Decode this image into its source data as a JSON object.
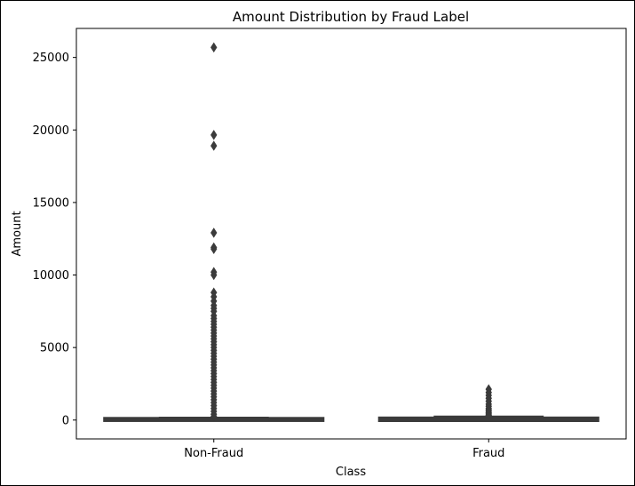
{
  "chart_data": {
    "type": "box",
    "title": "Amount Distribution by Fraud Label",
    "xlabel": "Class",
    "ylabel": "Amount",
    "ylim": [
      -1300,
      27000
    ],
    "yticks": [
      0,
      5000,
      10000,
      15000,
      20000,
      25000
    ],
    "categories": [
      "Non-Fraud",
      "Fraud"
    ],
    "grid": false,
    "box_color": "#3b3b3b",
    "series": [
      {
        "category": "Non-Fraud",
        "box": {
          "min": 0,
          "q1": 5,
          "median": 22,
          "q3": 77,
          "max": 185
        },
        "outliers": [
          25691,
          19656,
          18910,
          12910,
          11898,
          11790,
          10199,
          10000,
          8790,
          8500,
          8200,
          7900,
          7700,
          7500,
          7200,
          7000,
          6800,
          6600,
          6400,
          6200,
          6000,
          5800,
          5600,
          5400,
          5200,
          5000,
          4800,
          4600,
          4400,
          4200,
          4000,
          3800,
          3600,
          3400,
          3200,
          3000,
          2800,
          2600,
          2400,
          2200,
          2000,
          1800,
          1600,
          1400,
          1200,
          1000,
          800,
          600,
          400,
          250
        ]
      },
      {
        "category": "Fraud",
        "box": {
          "min": 0,
          "q1": 1,
          "median": 9,
          "q3": 105,
          "max": 260
        },
        "outliers": [
          2125,
          1900,
          1700,
          1500,
          1300,
          1100,
          950,
          800,
          700,
          600,
          500,
          420,
          350,
          300
        ]
      }
    ]
  }
}
